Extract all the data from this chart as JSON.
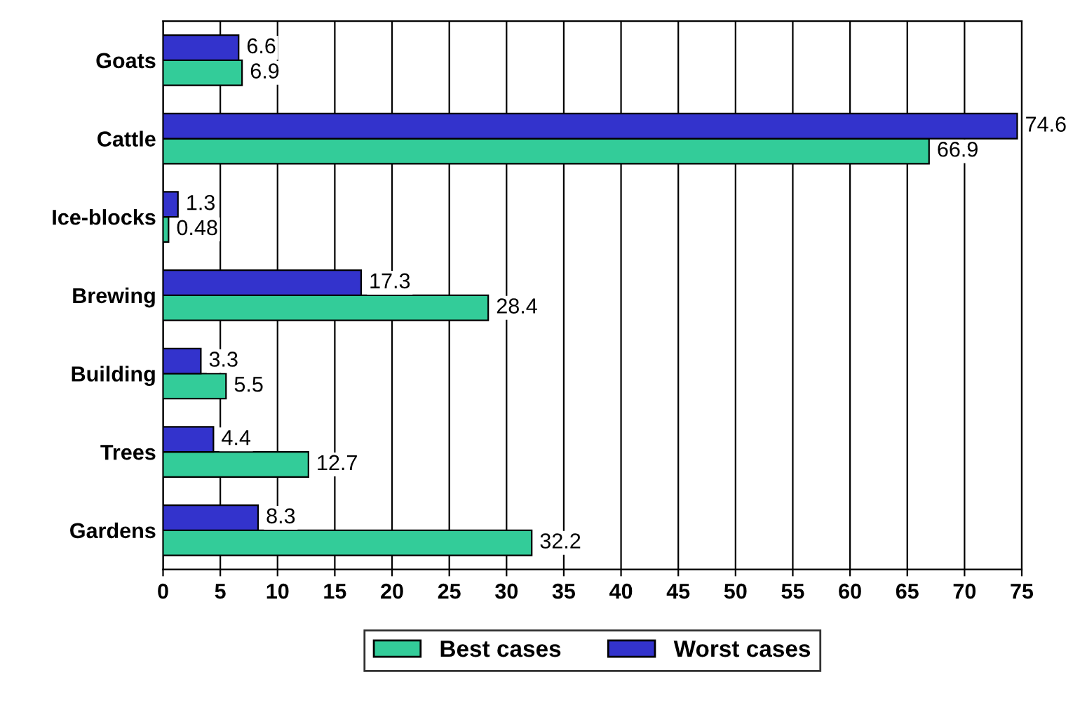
{
  "chart_data": {
    "type": "bar",
    "orientation": "horizontal",
    "categories": [
      "Goats",
      "Cattle",
      "Ice-blocks",
      "Brewing",
      "Building",
      "Trees",
      "Gardens"
    ],
    "series": [
      {
        "name": "Best cases",
        "color": "#33cc99",
        "values": [
          6.9,
          66.9,
          0.48,
          28.4,
          5.5,
          12.7,
          32.2
        ]
      },
      {
        "name": "Worst cases",
        "color": "#3333cc",
        "values": [
          6.6,
          74.6,
          1.3,
          17.3,
          3.3,
          4.4,
          8.3
        ]
      }
    ],
    "xlim": [
      0,
      75
    ],
    "xticks": [
      0,
      5,
      10,
      15,
      20,
      25,
      30,
      35,
      40,
      45,
      50,
      55,
      60,
      65,
      70,
      75
    ],
    "grid": "x",
    "legend": "bottom",
    "data_labels": true
  }
}
